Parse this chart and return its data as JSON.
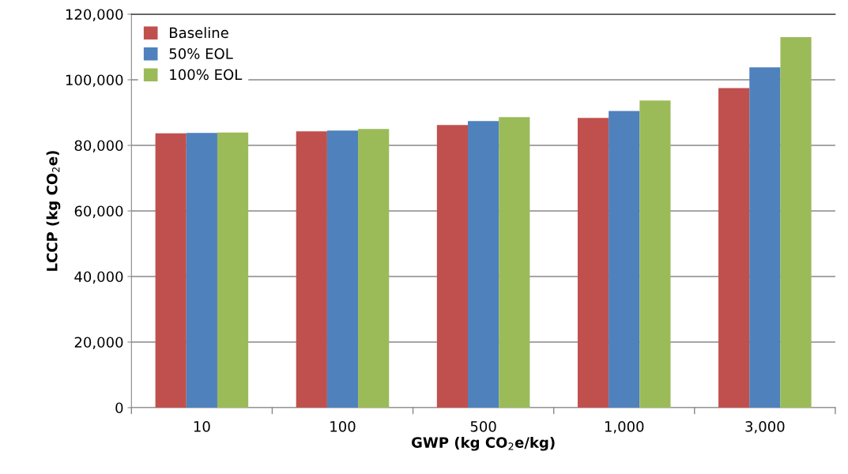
{
  "chart_data": {
    "type": "bar",
    "xlabel": "GWP (kg CO$_{2}$e/kg)",
    "ylabel": "LCCP (kg CO$_{2}$e)",
    "categories": [
      "10",
      "100",
      "500",
      "1,000",
      "3,000"
    ],
    "series": [
      {
        "name": "Baseline",
        "color": "#c0504d",
        "values": [
          83700,
          84300,
          86200,
          88400,
          97500
        ]
      },
      {
        "name": "50% EOL",
        "color": "#4f81bd",
        "values": [
          83800,
          84500,
          87400,
          90500,
          103800
        ]
      },
      {
        "name": "100% EOL",
        "color": "#9bbb59",
        "values": [
          83900,
          85000,
          88600,
          93700,
          113000
        ]
      }
    ],
    "ylim": [
      0,
      120000
    ],
    "yticks": [
      0,
      {
        "value": 20000,
        "label": "20,000"
      },
      {
        "value": 40000,
        "label": "40,000"
      },
      {
        "value": 60000,
        "label": "60,000"
      },
      {
        "value": 80000,
        "label": "80,000"
      },
      {
        "value": 100000,
        "label": "100,000"
      },
      {
        "value": 120000,
        "label": "120,000"
      }
    ],
    "grid": "y",
    "legend": "top left"
  }
}
